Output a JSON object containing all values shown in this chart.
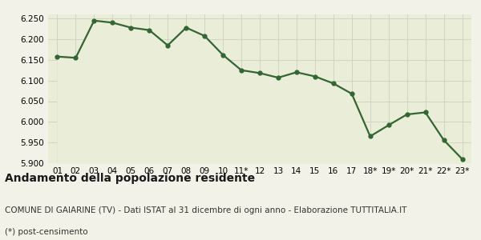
{
  "x_labels": [
    "01",
    "02",
    "03",
    "04",
    "05",
    "06",
    "07",
    "08",
    "09",
    "10",
    "11*",
    "12",
    "13",
    "14",
    "15",
    "16",
    "17",
    "18*",
    "19*",
    "20*",
    "21*",
    "22*",
    "23*"
  ],
  "y_values": [
    6158,
    6155,
    6245,
    6240,
    6228,
    6222,
    6185,
    6228,
    6208,
    6162,
    6125,
    6118,
    6107,
    6120,
    6110,
    6093,
    6068,
    5965,
    5992,
    6018,
    6023,
    5956,
    5910
  ],
  "line_color": "#336633",
  "fill_color": "#eaedd8",
  "marker": "o",
  "marker_size": 3.5,
  "line_width": 1.6,
  "ylim_min": 5900,
  "ylim_max": 6260,
  "yticks": [
    5900,
    5950,
    6000,
    6050,
    6100,
    6150,
    6200,
    6250
  ],
  "title": "Andamento della popolazione residente",
  "subtitle": "COMUNE DI GAIARINE (TV) - Dati ISTAT al 31 dicembre di ogni anno - Elaborazione TUTTITALIA.IT",
  "footnote": "(*) post-censimento",
  "bg_color": "#f2f2e8",
  "grid_color": "#d0d0c0",
  "title_fontsize": 10,
  "subtitle_fontsize": 7.5,
  "footnote_fontsize": 7.5,
  "tick_fontsize": 7.5
}
